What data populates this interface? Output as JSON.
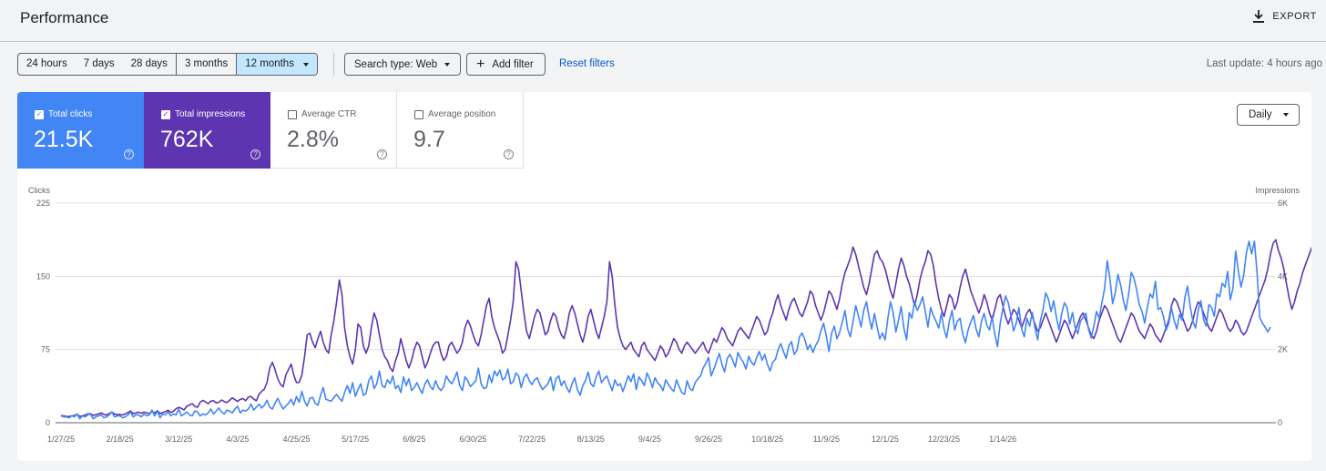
{
  "header": {
    "title": "Performance",
    "export_label": "EXPORT"
  },
  "toolbar": {
    "ranges": [
      "24 hours",
      "7 days",
      "28 days",
      "3 months",
      "12 months"
    ],
    "selected_range": "12 months",
    "search_type": "Search type: Web",
    "add_filter": "Add filter",
    "reset_filters": "Reset filters",
    "last_update": "Last update: 4 hours ago"
  },
  "metrics": [
    {
      "label": "Total clicks",
      "value": "21.5K",
      "checked": true,
      "color": "#4285f4"
    },
    {
      "label": "Total impressions",
      "value": "762K",
      "checked": true,
      "color": "#5e35b1"
    },
    {
      "label": "Average CTR",
      "value": "2.8%",
      "checked": false
    },
    {
      "label": "Average position",
      "value": "9.7",
      "checked": false
    }
  ],
  "granularity": "Daily",
  "chart_data": {
    "type": "line",
    "ylabel_left": "Clicks",
    "ylabel_right": "Impressions",
    "yticks_left": [
      "0",
      "75",
      "150",
      "225"
    ],
    "yticks_right": [
      "0",
      "2K",
      "4K",
      "6K"
    ],
    "ylim_left": [
      0,
      225
    ],
    "ylim_right": [
      0,
      6000
    ],
    "grid": true,
    "x_ticks": [
      "1/27/25",
      "2/18/25",
      "3/12/25",
      "4/3/25",
      "4/25/25",
      "5/17/25",
      "6/8/25",
      "6/30/25",
      "7/22/25",
      "8/13/25",
      "9/4/25",
      "9/26/25",
      "10/18/25",
      "11/9/25",
      "12/1/25",
      "12/23/25",
      "1/14/26"
    ],
    "x_start": "2025-01-27",
    "series": [
      {
        "name": "Clicks",
        "axis": "left",
        "color": "#4285f4",
        "values": [
          8,
          6,
          6,
          5,
          7,
          6,
          9,
          4,
          7,
          6,
          8,
          9,
          4,
          6,
          7,
          8,
          5,
          6,
          8,
          11,
          6,
          7,
          7,
          5,
          6,
          8,
          11,
          6,
          8,
          8,
          6,
          9,
          7,
          8,
          13,
          7,
          12,
          5,
          9,
          8,
          11,
          7,
          9,
          8,
          14,
          7,
          9,
          11,
          8,
          7,
          12,
          11,
          7,
          9,
          8,
          10,
          14,
          9,
          12,
          15,
          11,
          9,
          13,
          12,
          10,
          14,
          17,
          10,
          13,
          12,
          14,
          19,
          13,
          16,
          19,
          15,
          18,
          23,
          16,
          14,
          20,
          25,
          19,
          14,
          17,
          20,
          24,
          18,
          27,
          21,
          32,
          22,
          17,
          25,
          26,
          20,
          18,
          28,
          36,
          24,
          23,
          22,
          26,
          29,
          25,
          22,
          31,
          38,
          30,
          41,
          27,
          34,
          40,
          28,
          30,
          43,
          48,
          35,
          40,
          53,
          38,
          36,
          44,
          40,
          48,
          35,
          38,
          31,
          47,
          38,
          45,
          33,
          36,
          41,
          35,
          30,
          40,
          44,
          37,
          34,
          43,
          36,
          33,
          37,
          48,
          43,
          40,
          45,
          52,
          38,
          33,
          47,
          43,
          37,
          40,
          43,
          56,
          40,
          35,
          36,
          49,
          41,
          53,
          48,
          54,
          44,
          46,
          55,
          40,
          42,
          51,
          48,
          36,
          46,
          50,
          43,
          39,
          44,
          46,
          39,
          34,
          37,
          40,
          47,
          33,
          45,
          48,
          38,
          43,
          36,
          31,
          40,
          46,
          34,
          28,
          38,
          43,
          52,
          40,
          37,
          47,
          53,
          41,
          45,
          48,
          40,
          33,
          44,
          38,
          40,
          32,
          40,
          48,
          42,
          50,
          34,
          47,
          43,
          38,
          51,
          45,
          36,
          46,
          41,
          38,
          33,
          44,
          39,
          35,
          32,
          44,
          37,
          31,
          29,
          43,
          35,
          33,
          41,
          45,
          48,
          56,
          61,
          67,
          48,
          55,
          63,
          71,
          60,
          52,
          66,
          70,
          64,
          57,
          72,
          66,
          62,
          55,
          68,
          62,
          59,
          67,
          73,
          64,
          70,
          60,
          53,
          62,
          65,
          75,
          81,
          73,
          66,
          79,
          83,
          70,
          74,
          88,
          92,
          85,
          75,
          80,
          72,
          79,
          84,
          94,
          102,
          89,
          73,
          92,
          99,
          86,
          93,
          103,
          115,
          96,
          88,
          104,
          120,
          110,
          98,
          115,
          124,
          108,
          96,
          112,
          98,
          86,
          92,
          85,
          107,
          124,
          113,
          93,
          105,
          119,
          97,
          85,
          113,
          107,
          124,
          115,
          121,
          129,
          114,
          98,
          118,
          110,
          104,
          97,
          112,
          96,
          87,
          104,
          115,
          95,
          104,
          107,
          91,
          82,
          95,
          103,
          110,
          96,
          88,
          104,
          112,
          100,
          95,
          109,
          90,
          78,
          102,
          117,
          130,
          123,
          110,
          94,
          102,
          118,
          96,
          88,
          107,
          99,
          113,
          97,
          85,
          104,
          116,
          133,
          127,
          114,
          125,
          108,
          95,
          112,
          123,
          118,
          101,
          113,
          98,
          91,
          104,
          108,
          112,
          96,
          87,
          99,
          114,
          107,
          123,
          137,
          166,
          148,
          122,
          133,
          152,
          141,
          126,
          115,
          132,
          154,
          148,
          136,
          121,
          114,
          102,
          118,
          132,
          128,
          145,
          116,
          118,
          109,
          95,
          102,
          118,
          105,
          96,
          111,
          105,
          128,
          140,
          119,
          104,
          97,
          115,
          125,
          106,
          99,
          121,
          118,
          109,
          132,
          129,
          143,
          139,
          155,
          126,
          138,
          176,
          156,
          139,
          151,
          174,
          186,
          173,
          186,
          154,
          108,
          102,
          98,
          93,
          98
        ]
      },
      {
        "name": "Impressions",
        "axis": "right",
        "color": "#5e35b1",
        "values": [
          180,
          190,
          170,
          175,
          185,
          200,
          230,
          175,
          190,
          210,
          240,
          250,
          200,
          220,
          240,
          270,
          230,
          210,
          250,
          290,
          240,
          220,
          230,
          210,
          240,
          280,
          320,
          250,
          270,
          290,
          260,
          290,
          270,
          250,
          300,
          270,
          330,
          250,
          280,
          300,
          340,
          280,
          310,
          380,
          420,
          390,
          350,
          450,
          480,
          520,
          450,
          420,
          560,
          610,
          570,
          520,
          590,
          600,
          540,
          560,
          620,
          580,
          550,
          610,
          680,
          630,
          580,
          640,
          660,
          600,
          700,
          720,
          650,
          600,
          780,
          860,
          920,
          1100,
          1500,
          1650,
          1450,
          1200,
          1050,
          980,
          1300,
          1450,
          1600,
          1300,
          1100,
          1100,
          1300,
          1800,
          2400,
          2450,
          2200,
          2050,
          2300,
          2500,
          2200,
          2000,
          1900,
          2400,
          2800,
          3300,
          3900,
          3500,
          2600,
          2100,
          1800,
          1600,
          2000,
          2700,
          2600,
          2100,
          1900,
          2100,
          2600,
          3000,
          2800,
          2400,
          2000,
          1800,
          1700,
          1500,
          1400,
          1700,
          1900,
          2300,
          2000,
          1700,
          1500,
          1700,
          2000,
          2200,
          2100,
          1800,
          1500,
          1650,
          1900,
          2100,
          2200,
          2200,
          1900,
          1700,
          1800,
          2100,
          2200,
          2050,
          1900,
          2000,
          2200,
          2600,
          2800,
          2650,
          2400,
          2200,
          2100,
          2400,
          2800,
          3200,
          3400,
          2900,
          2600,
          2400,
          2200,
          1900,
          2000,
          2400,
          2800,
          3300,
          4400,
          4200,
          3600,
          3000,
          2500,
          2300,
          2600,
          2900,
          3100,
          3000,
          2700,
          2400,
          2500,
          2800,
          3000,
          2900,
          2600,
          2400,
          2300,
          2600,
          3000,
          3200,
          3000,
          2700,
          2400,
          2200,
          2500,
          2900,
          3100,
          2800,
          2500,
          2300,
          2600,
          2900,
          3300,
          4400,
          4000,
          3200,
          2600,
          2300,
          2100,
          2000,
          2100,
          2200,
          2000,
          1900,
          1800,
          2100,
          2200,
          2000,
          1900,
          1800,
          1700,
          1900,
          2100,
          2000,
          1800,
          1900,
          2100,
          2300,
          2200,
          2000,
          1900,
          2100,
          2200,
          2100,
          2000,
          1900,
          2000,
          2100,
          2200,
          2000,
          1900,
          2100,
          2300,
          2200,
          2400,
          2600,
          2500,
          2300,
          2200,
          2100,
          2300,
          2500,
          2600,
          2500,
          2400,
          2300,
          2500,
          2700,
          2900,
          2800,
          2600,
          2400,
          2500,
          2800,
          3000,
          3300,
          3500,
          3200,
          3000,
          2800,
          3100,
          3300,
          3400,
          3200,
          3000,
          2900,
          3100,
          3300,
          3600,
          3500,
          3200,
          3000,
          2800,
          3000,
          3300,
          3600,
          3500,
          3300,
          3100,
          3400,
          3800,
          4100,
          4300,
          4500,
          4800,
          4600,
          4300,
          4000,
          3700,
          3500,
          3800,
          4200,
          4600,
          4700,
          4500,
          4400,
          4200,
          3900,
          3600,
          3400,
          3800,
          4200,
          4500,
          4300,
          4000,
          3800,
          3500,
          3200,
          3500,
          3900,
          4200,
          4400,
          4700,
          4600,
          4300,
          3800,
          3400,
          3100,
          2900,
          3200,
          3500,
          3400,
          3100,
          3300,
          3700,
          4000,
          4200,
          3900,
          3600,
          3400,
          3200,
          3000,
          3200,
          3500,
          3300,
          3000,
          2800,
          3100,
          3400,
          3500,
          3200,
          2900,
          2700,
          2900,
          3100,
          3000,
          2800,
          2600,
          2800,
          3000,
          3100,
          2900,
          2700,
          2500,
          2600,
          2800,
          3000,
          2800,
          2600,
          2400,
          2200,
          2400,
          2600,
          2800,
          2700,
          2500,
          2300,
          2500,
          2700,
          2900,
          3000,
          2800,
          2600,
          2400,
          2300,
          2500,
          2800,
          3000,
          3200,
          3100,
          2900,
          2700,
          2500,
          2300,
          2200,
          2400,
          2600,
          2800,
          3000,
          2900,
          2700,
          2500,
          2400,
          2300,
          2500,
          2700,
          2600,
          2400,
          2300,
          2200,
          2400,
          2600,
          2800,
          3200,
          3400,
          3300,
          3100,
          2900,
          2700,
          2500,
          2600,
          2800,
          3100,
          3300,
          3200,
          3000,
          2800,
          2600,
          2500,
          2700,
          2900,
          3100,
          3000,
          2800,
          2600,
          2500,
          2600,
          2800,
          2700,
          2500,
          2400,
          2500,
          2700,
          2900,
          3100,
          3300,
          3500,
          3700,
          3900,
          4200,
          4600,
          4900,
          5000,
          4700,
          4500,
          4200,
          3800,
          3400,
          3100,
          3300,
          3600,
          3800,
          4100,
          4300,
          4500,
          4700,
          4900,
          5000,
          4800,
          4400,
          3600,
          3300,
          3100,
          3400,
          3700,
          4100,
          4400
        ]
      }
    ]
  }
}
